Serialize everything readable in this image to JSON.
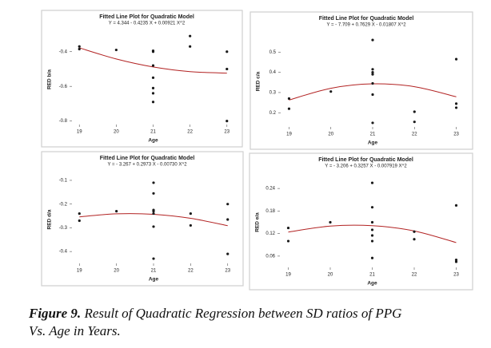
{
  "chart_data": [
    {
      "type": "scatter",
      "title": "Fitted Line Plot for Quadratic Model",
      "subtitle": "Y = 4.344 - 0.4235 X + 0.00921 X^2",
      "x_label": "Age",
      "y_label": "RED b/a",
      "points": {
        "color": "#1a1a1a",
        "x": [
          19,
          19,
          20,
          21,
          21,
          21,
          21,
          21,
          21,
          21,
          22,
          22,
          23,
          23,
          23
        ],
        "y": [
          -0.37,
          -0.385,
          -0.39,
          -0.395,
          -0.4,
          -0.48,
          -0.55,
          -0.61,
          -0.64,
          -0.69,
          -0.31,
          -0.37,
          -0.4,
          -0.5,
          -0.8
        ]
      },
      "fit": {
        "color": "#b22222",
        "x": [
          19,
          20,
          21,
          22,
          23
        ],
        "y": [
          -0.378,
          -0.442,
          -0.488,
          -0.515,
          -0.524
        ]
      },
      "xlim": [
        18.8,
        23.2
      ],
      "xticks": [
        19,
        20,
        21,
        22,
        23
      ],
      "ylim": [
        -0.82,
        -0.3
      ],
      "yticks": [
        -0.4,
        -0.6,
        -0.8
      ]
    },
    {
      "type": "scatter",
      "title": "Fitted Line Plot for Quadratic Model",
      "subtitle": "Y = - 7.709 + 0.7629 X - 0.01807 X^2",
      "x_label": "Age",
      "y_label": "RED c/a",
      "points": {
        "color": "#1a1a1a",
        "x": [
          19,
          19,
          20,
          21,
          21,
          21,
          21,
          21,
          21,
          21,
          22,
          22,
          23,
          23,
          23
        ],
        "y": [
          0.27,
          0.22,
          0.305,
          0.56,
          0.415,
          0.4,
          0.39,
          0.345,
          0.29,
          0.15,
          0.205,
          0.155,
          0.465,
          0.245,
          0.225
        ]
      },
      "fit": {
        "color": "#b22222",
        "x": [
          19,
          20,
          21,
          22,
          23
        ],
        "y": [
          0.263,
          0.321,
          0.343,
          0.329,
          0.279
        ]
      },
      "xlim": [
        18.8,
        23.2
      ],
      "xticks": [
        19,
        20,
        21,
        22,
        23
      ],
      "ylim": [
        0.13,
        0.58
      ],
      "yticks": [
        0.2,
        0.3,
        0.4,
        0.5
      ]
    },
    {
      "type": "scatter",
      "title": "Fitted Line Plot for Quadratic Model",
      "subtitle": "Y = - 3.267 + 0.2973 X - 0.00730 X^2",
      "x_label": "Age",
      "y_label": "RED d/a",
      "points": {
        "color": "#1a1a1a",
        "x": [
          19,
          19,
          20,
          21,
          21,
          21,
          21,
          21,
          21,
          21,
          22,
          22,
          23,
          23,
          23
        ],
        "y": [
          -0.24,
          -0.27,
          -0.23,
          -0.11,
          -0.155,
          -0.225,
          -0.23,
          -0.24,
          -0.295,
          -0.43,
          -0.24,
          -0.29,
          -0.2,
          -0.265,
          -0.41
        ]
      },
      "fit": {
        "color": "#b22222",
        "x": [
          19,
          20,
          21,
          22,
          23
        ],
        "y": [
          -0.254,
          -0.241,
          -0.243,
          -0.26,
          -0.291
        ]
      },
      "xlim": [
        18.8,
        23.2
      ],
      "xticks": [
        19,
        20,
        21,
        22,
        23
      ],
      "ylim": [
        -0.45,
        -0.08
      ],
      "yticks": [
        -0.1,
        -0.2,
        -0.3,
        -0.4
      ]
    },
    {
      "type": "scatter",
      "title": "Fitted Line Plot for Quadratic Model",
      "subtitle": "Y = - 3.206 + 0.3257 X - 0.007919 X^2",
      "x_label": "Age",
      "y_label": "RED e/a",
      "points": {
        "color": "#1a1a1a",
        "x": [
          19,
          19,
          20,
          21,
          21,
          21,
          21,
          21,
          21,
          21,
          22,
          22,
          23,
          23,
          23
        ],
        "y": [
          0.135,
          0.1,
          0.15,
          0.255,
          0.19,
          0.15,
          0.13,
          0.115,
          0.1,
          0.055,
          0.125,
          0.105,
          0.195,
          0.05,
          0.045
        ]
      },
      "fit": {
        "color": "#b22222",
        "x": [
          19,
          20,
          21,
          22,
          23
        ],
        "y": [
          0.124,
          0.14,
          0.141,
          0.127,
          0.096
        ]
      },
      "xlim": [
        18.8,
        23.2
      ],
      "xticks": [
        19,
        20,
        21,
        22,
        23
      ],
      "ylim": [
        0.03,
        0.27
      ],
      "yticks": [
        0.06,
        0.12,
        0.18,
        0.24
      ]
    }
  ],
  "caption": {
    "label": "Figure 9.",
    "text": "Result of Quadratic Regression between SD ratios of PPG Vs. Age in Years."
  }
}
